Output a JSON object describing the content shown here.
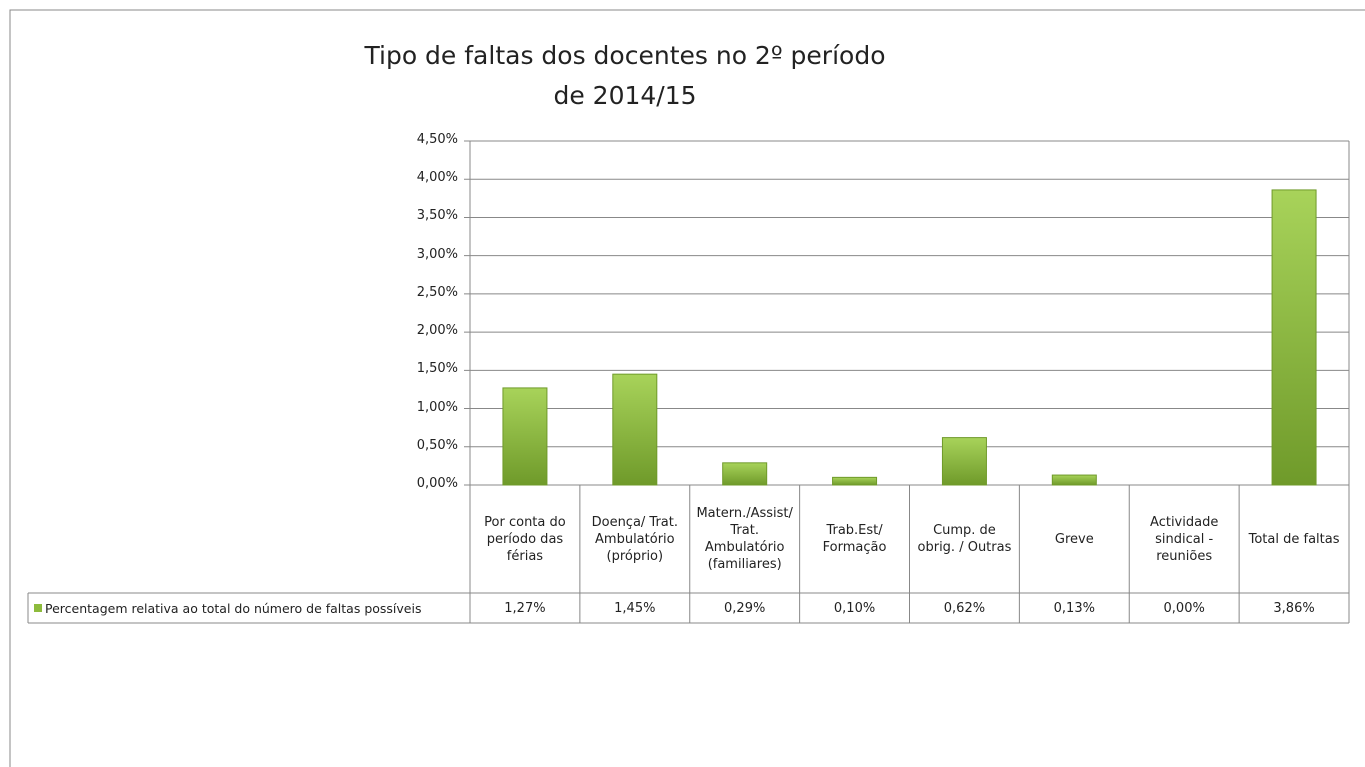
{
  "chart_data": {
    "type": "bar",
    "title": "Tipo de faltas dos docentes no 2º período de 2014/15",
    "categories": [
      "Por conta do período das férias",
      "Doença/ Trat. Ambulatório (próprio)",
      "Matern./Assist/ Trat. Ambulatório (familiares)",
      "Trab.Est/ Formação",
      "Cump. de obrig. / Outras",
      "Greve",
      "Actividade sindical - reuniões",
      "Total de faltas"
    ],
    "series": [
      {
        "name": "Percentagem relativa ao total do número de faltas possíveis",
        "color": "#8dbb3c",
        "values": [
          1.27,
          1.45,
          0.29,
          0.1,
          0.62,
          0.13,
          0.0,
          3.86
        ],
        "value_labels": [
          "1,27%",
          "1,45%",
          "0,29%",
          "0,10%",
          "0,62%",
          "0,13%",
          "0,00%",
          "3,86%"
        ]
      }
    ],
    "ylim": [
      0,
      4.5
    ],
    "yticks": [
      {
        "value": 0,
        "label": "0,00%"
      },
      {
        "value": 0.5,
        "label": "0,50%"
      },
      {
        "value": 1,
        "label": "1,00%"
      },
      {
        "value": 1.5,
        "label": "1,50%"
      },
      {
        "value": 2,
        "label": "2,00%"
      },
      {
        "value": 2.5,
        "label": "2,50%"
      },
      {
        "value": 3,
        "label": "3,00%"
      },
      {
        "value": 3.5,
        "label": "3,50%"
      },
      {
        "value": 4,
        "label": "4,00%"
      },
      {
        "value": 4.5,
        "label": "4,50%"
      }
    ],
    "grid": true
  }
}
